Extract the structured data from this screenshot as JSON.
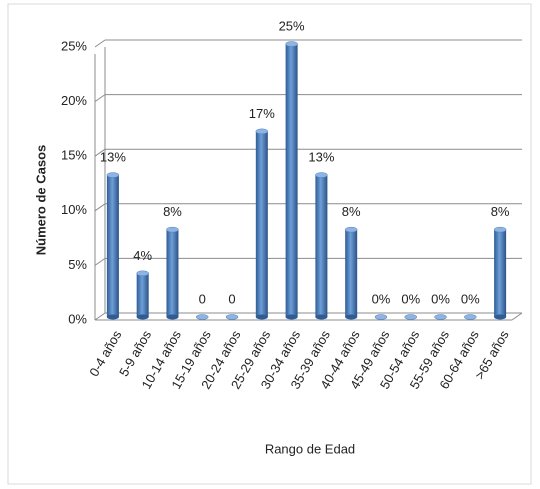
{
  "chart_data": {
    "type": "bar",
    "y_label": "Número de Casos",
    "x_label": "Rango de Edad",
    "categories": [
      "0-4 años",
      "5-9 años",
      "10-14 años",
      "15-19 años",
      "20-24 años",
      "25-29 años",
      "30-34 años",
      "35-39 años",
      "40-44 años",
      "45-49 años",
      "50-54 años",
      "55-59 años",
      "60-64 años",
      ">65 años"
    ],
    "values": [
      13,
      4,
      8,
      0,
      0,
      17,
      25,
      13,
      8,
      0,
      0,
      0,
      0,
      8
    ],
    "value_labels": [
      "13%",
      "4%",
      "8%",
      "0",
      "0",
      "17%",
      "25%",
      "13%",
      "8%",
      "0%",
      "0%",
      "0%",
      "0%",
      "8%"
    ],
    "color": "#4f81bd",
    "ylim": [
      0,
      25
    ],
    "yticks": [
      {
        "value": 0,
        "label": "0%"
      },
      {
        "value": 5,
        "label": "5%"
      },
      {
        "value": 10,
        "label": "10%"
      },
      {
        "value": 15,
        "label": "15%"
      },
      {
        "value": 20,
        "label": "20%"
      },
      {
        "value": 25,
        "label": "25%"
      }
    ],
    "grid": true
  }
}
